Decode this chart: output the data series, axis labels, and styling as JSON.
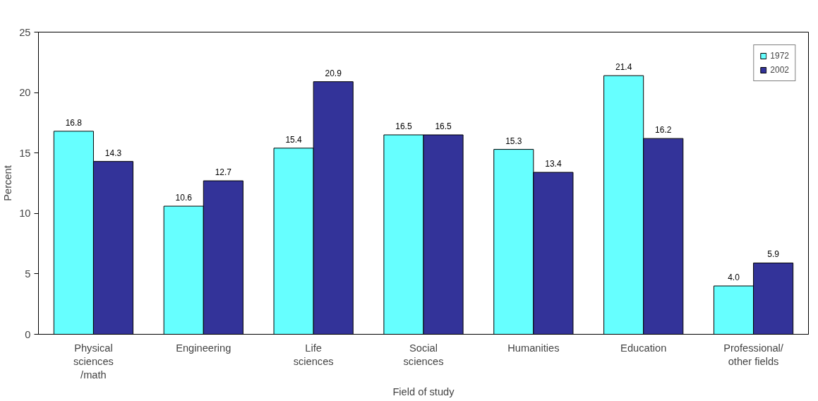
{
  "chart_data": {
    "type": "bar",
    "xlabel": "Field of study",
    "ylabel": "Percent",
    "categories": [
      "Physical\nsciences\n/math",
      "Engineering",
      "Life\nsciences",
      "Social\nsciences",
      "Humanities",
      "Education",
      "Professional/\nother fields"
    ],
    "series": [
      {
        "name": "1972",
        "color": "#66ffff",
        "values": [
          16.8,
          10.6,
          15.4,
          16.5,
          15.3,
          21.4,
          4.0
        ],
        "value_labels": [
          "16.8",
          "10.6",
          "15.4",
          "16.5",
          "15.3",
          "21.4",
          "4.0"
        ]
      },
      {
        "name": "2002",
        "color": "#333399",
        "values": [
          14.3,
          12.7,
          20.9,
          16.5,
          13.4,
          16.2,
          5.9
        ],
        "value_labels": [
          "14.3",
          "12.7",
          "20.9",
          "16.5",
          "13.4",
          "16.2",
          "5.9"
        ]
      }
    ],
    "ylim": [
      0,
      25
    ],
    "yticks": [
      0,
      5,
      10,
      15,
      20,
      25
    ],
    "grid": false,
    "legend": "top right"
  }
}
